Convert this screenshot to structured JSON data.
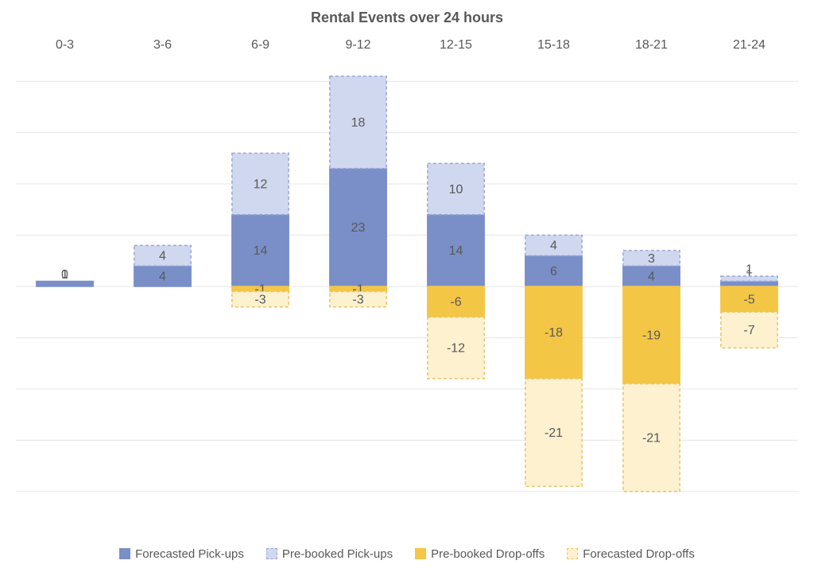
{
  "chart": {
    "type": "stacked-bar",
    "title": "Rental Events over 24 hours",
    "title_fontsize": 18,
    "label_fontsize": 16,
    "categories": [
      "0-3",
      "3-6",
      "6-9",
      "9-12",
      "12-15",
      "15-18",
      "18-21",
      "21-24"
    ],
    "series": {
      "forecasted_pickups": {
        "label": "Forecasted Pick-ups",
        "values": [
          1,
          4,
          14,
          23,
          14,
          6,
          4,
          1
        ],
        "color": "#7a8ec8",
        "border": "#7a8ec8",
        "dash": false
      },
      "prebooked_pickups": {
        "label": "Pre-booked Pick-ups",
        "values": [
          0,
          4,
          12,
          18,
          10,
          4,
          3,
          1
        ],
        "color": "#cfd8ee",
        "border": "#9aa8d6",
        "dash": true
      },
      "prebooked_dropoffs": {
        "label": "Pre-booked Drop-offs",
        "values": [
          0,
          0,
          -1,
          -1,
          -6,
          -18,
          -19,
          -5
        ],
        "color": "#f4c646",
        "border": "#f4c646",
        "dash": false
      },
      "forecasted_dropoffs": {
        "label": "Forecasted Drop-offs",
        "values": [
          0,
          0,
          -3,
          -3,
          -12,
          -21,
          -21,
          -7
        ],
        "color": "#fdf1d0",
        "border": "#e7c566",
        "dash": true
      }
    },
    "ylim": [
      -45,
      45
    ],
    "grid_step": 10,
    "grid_color": "#e6e6e6",
    "background_color": "#ffffff",
    "bar_width": 0.58,
    "min_label_height": 14
  },
  "legend_order": [
    "forecasted_pickups",
    "prebooked_pickups",
    "prebooked_dropoffs",
    "forecasted_dropoffs"
  ]
}
